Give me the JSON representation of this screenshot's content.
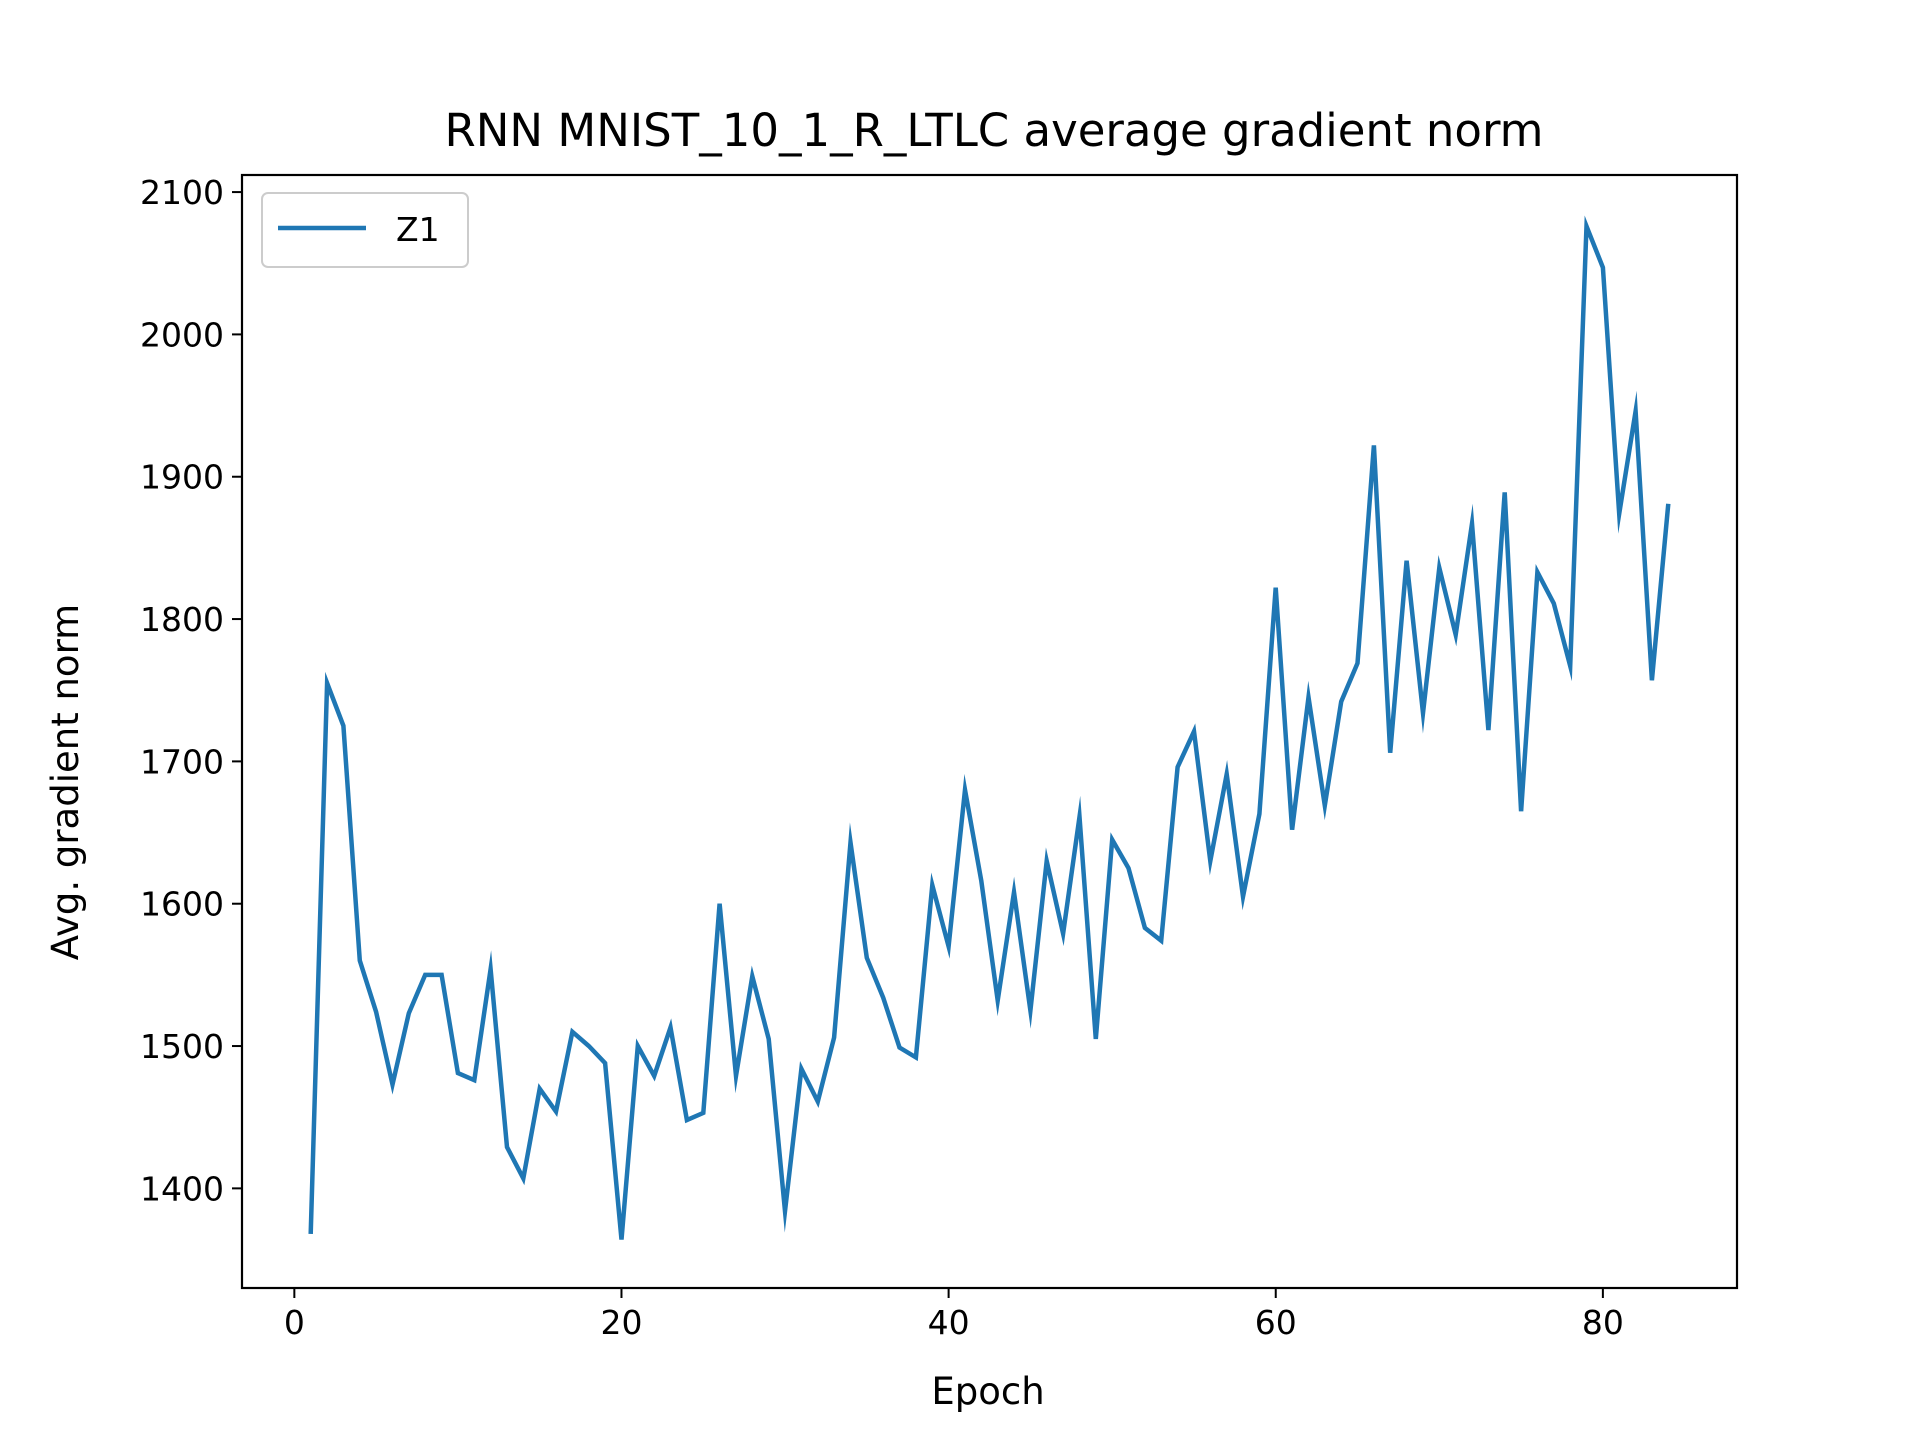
{
  "chart_data": {
    "type": "line",
    "title": "RNN MNIST_10_1_R_LTLC average gradient norm",
    "xlabel": "Epoch",
    "ylabel": "Avg. gradient norm",
    "xlim": [
      -3.2,
      88.2
    ],
    "ylim": [
      1330,
      2112
    ],
    "xticks": [
      0,
      20,
      40,
      60,
      80
    ],
    "yticks": [
      1400,
      1500,
      1600,
      1700,
      1800,
      1900,
      2000,
      2100
    ],
    "grid": false,
    "legend_position": "top-left",
    "series": [
      {
        "name": "Z1",
        "color": "#1f77b4",
        "x": [
          1,
          2,
          3,
          4,
          5,
          6,
          7,
          8,
          9,
          10,
          11,
          12,
          13,
          14,
          15,
          16,
          17,
          18,
          19,
          20,
          21,
          22,
          23,
          24,
          25,
          26,
          27,
          28,
          29,
          30,
          31,
          32,
          33,
          34,
          35,
          36,
          37,
          38,
          39,
          40,
          41,
          42,
          43,
          44,
          45,
          46,
          47,
          48,
          49,
          50,
          51,
          52,
          53,
          54,
          55,
          56,
          57,
          58,
          59,
          60,
          61,
          62,
          63,
          64,
          65,
          66,
          67,
          68,
          69,
          70,
          71,
          72,
          73,
          74,
          75,
          76,
          77,
          78,
          79,
          80,
          81,
          82,
          83,
          84
        ],
        "values": [
          1368,
          1755,
          1725,
          1560,
          1524,
          1473,
          1523,
          1550,
          1550,
          1481,
          1476,
          1554,
          1429,
          1407,
          1470,
          1454,
          1510,
          1500,
          1488,
          1364,
          1500,
          1479,
          1513,
          1448,
          1453,
          1600,
          1479,
          1549,
          1505,
          1384,
          1484,
          1461,
          1506,
          1643,
          1562,
          1534,
          1499,
          1492,
          1613,
          1570,
          1680,
          1616,
          1532,
          1608,
          1525,
          1630,
          1579,
          1661,
          1505,
          1645,
          1625,
          1583,
          1574,
          1696,
          1721,
          1630,
          1691,
          1605,
          1663,
          1822,
          1652,
          1745,
          1669,
          1742,
          1769,
          1922,
          1706,
          1841,
          1734,
          1836,
          1789,
          1867,
          1722,
          1889,
          1665,
          1833,
          1811,
          1767,
          2076,
          2047,
          1874,
          1946,
          1757,
          1881
        ]
      }
    ]
  }
}
